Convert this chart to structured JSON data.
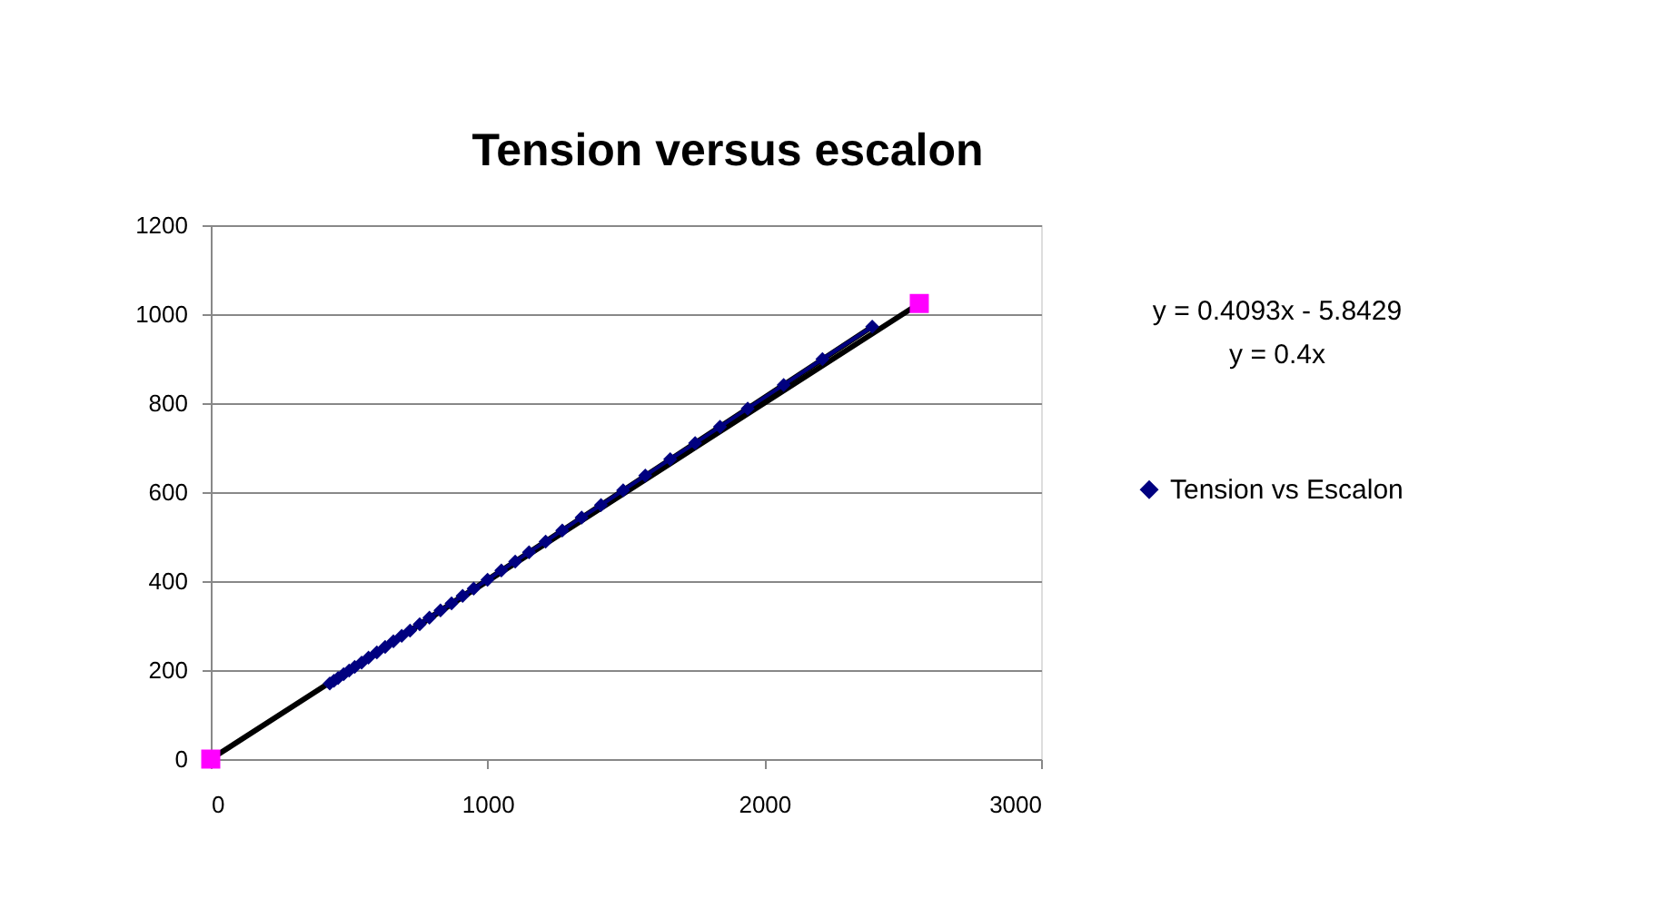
{
  "chart_data": {
    "type": "scatter",
    "title": "Tension versus escalon",
    "xlim": [
      0,
      3000
    ],
    "xticks": [
      0,
      1000,
      2000,
      3000
    ],
    "ylim": [
      0,
      1200
    ],
    "yticks": [
      0,
      200,
      400,
      600,
      800,
      1000,
      1200
    ],
    "grid": "y",
    "legend": "right",
    "annotations": [
      "y = 0.4093x - 5.8429",
      "y = 0.4x"
    ],
    "series": [
      {
        "name": "Tension vs Escalon",
        "type": "line",
        "marker": "diamond",
        "color": "#000080",
        "x": [
          430,
          445,
          460,
          480,
          500,
          520,
          545,
          570,
          600,
          630,
          660,
          690,
          720,
          755,
          790,
          830,
          870,
          910,
          950,
          1000,
          1050,
          1100,
          1150,
          1210,
          1270,
          1340,
          1410,
          1490,
          1570,
          1660,
          1750,
          1840,
          1940,
          2070,
          2210,
          2390
        ],
        "values": [
          170,
          176,
          182,
          191,
          199,
          207,
          217,
          228,
          240,
          252,
          265,
          277,
          289,
          303,
          318,
          334,
          350,
          367,
          383,
          403,
          424,
          444,
          465,
          489,
          514,
          543,
          571,
          604,
          637,
          674,
          710,
          747,
          788,
          841,
          899,
          972
        ]
      },
      {
        "type": "line",
        "marker": "none",
        "color": "#000000",
        "x": [
          430,
          2390
        ],
        "values": [
          170,
          972
        ]
      },
      {
        "type": "line",
        "marker": "none",
        "color": "#000000",
        "x": [
          0,
          2560
        ],
        "values": [
          0,
          1024
        ]
      },
      {
        "type": "scatter",
        "marker": "square",
        "color": "#ff00ff",
        "x": [
          0,
          2560
        ],
        "values": [
          0,
          1024
        ]
      }
    ]
  }
}
